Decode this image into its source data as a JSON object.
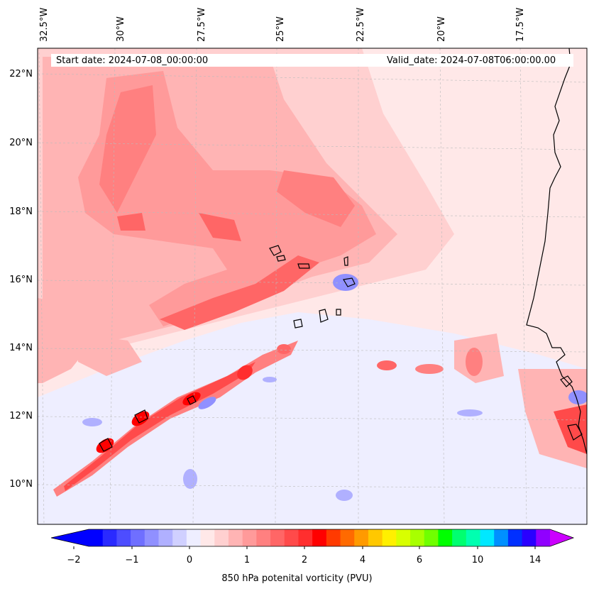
{
  "map": {
    "start_label": "Start date: 2024-07-08_00:00:00",
    "valid_label": "Valid_date: 2024-07-08T06:00:00.00",
    "lon_labels": [
      "32.5°W",
      "30°W",
      "27.5°W",
      "25°W",
      "22.5°W",
      "20°W",
      "17.5°W"
    ],
    "lat_labels": [
      "22°N",
      "20°N",
      "18°N",
      "16°N",
      "14°N",
      "12°N",
      "10°N"
    ],
    "land_outline_color": "#000000",
    "background_color": "#ffe8e8"
  },
  "colorbar": {
    "title": "850 hPa potenital vorticity (PVU)",
    "tick_labels": [
      "−2",
      "−1",
      "0",
      "1",
      "2",
      "4",
      "6",
      "10",
      "14"
    ],
    "colors": [
      "#0000ff",
      "#2a2aff",
      "#4d4dff",
      "#6f6fff",
      "#9090ff",
      "#b0b0ff",
      "#d0d0ff",
      "#eeeeff",
      "#ffe8e8",
      "#ffd0d0",
      "#ffb4b4",
      "#ff9a9a",
      "#ff8080",
      "#ff6666",
      "#ff4a4a",
      "#ff2e2e",
      "#ff0000",
      "#ff3a00",
      "#ff6a00",
      "#ff9a00",
      "#ffc800",
      "#fff000",
      "#d8ff00",
      "#a8ff00",
      "#70ff00",
      "#00ff00",
      "#00ff70",
      "#00ffb0",
      "#00e8ff",
      "#0090ff",
      "#0030ff",
      "#2a00ff",
      "#9000ff"
    ],
    "under_color": "#0000ff",
    "over_color": "#cc00ff"
  }
}
